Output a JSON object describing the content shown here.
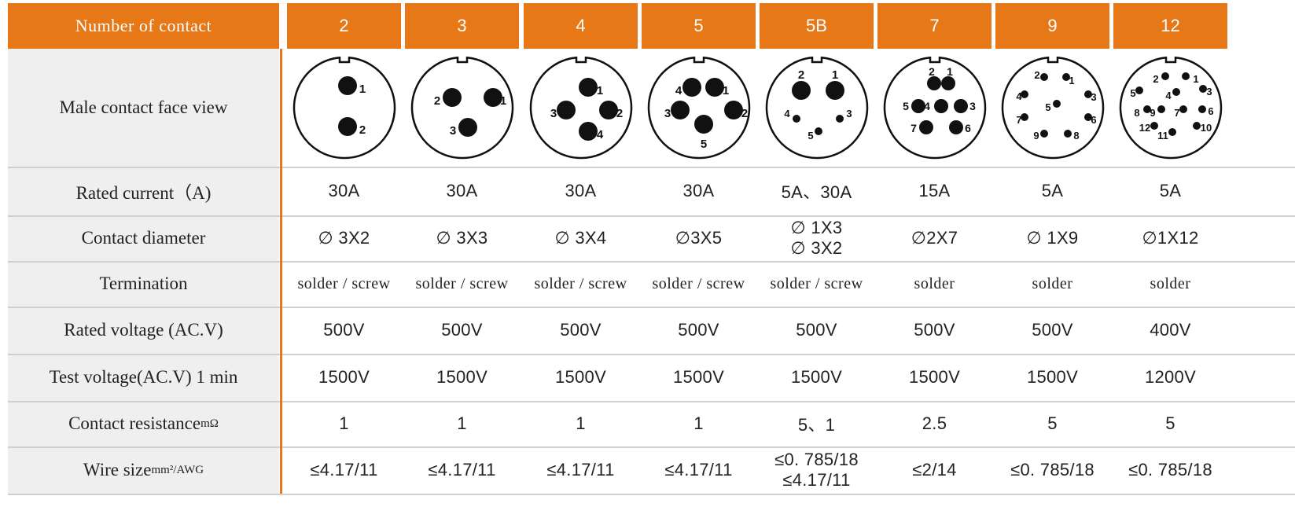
{
  "header": {
    "label": "Number of contact",
    "columns": [
      "2",
      "3",
      "4",
      "5",
      "5B",
      "7",
      "9",
      "12"
    ]
  },
  "rows": {
    "face_view": {
      "label": "Male contact face view"
    },
    "rated_current": {
      "label": "Rated current（A)",
      "values": [
        "30A",
        "30A",
        "30A",
        "30A",
        "5A、30A",
        "15A",
        "5A",
        "5A"
      ]
    },
    "contact_diameter": {
      "label": "Contact diameter",
      "values": [
        "∅ 3X2",
        "∅ 3X3",
        "∅ 3X4",
        "∅3X5",
        "∅ 1X3",
        "∅2X7",
        "∅ 1X9",
        "∅1X12"
      ],
      "values_line2": [
        "",
        "",
        "",
        "",
        "∅ 3X2",
        "",
        "",
        ""
      ]
    },
    "termination": {
      "label": "Termination",
      "values": [
        "solder / screw",
        "solder / screw",
        "solder / screw",
        "solder / screw",
        "solder / screw",
        "solder",
        "solder",
        "solder"
      ]
    },
    "rated_voltage": {
      "label": "Rated voltage (AC.V)",
      "values": [
        "500V",
        "500V",
        "500V",
        "500V",
        "500V",
        "500V",
        "500V",
        "400V"
      ]
    },
    "test_voltage": {
      "label": "Test voltage(AC.V) 1 min",
      "values": [
        "1500V",
        "1500V",
        "1500V",
        "1500V",
        "1500V",
        "1500V",
        "1500V",
        "1200V"
      ]
    },
    "contact_resistance": {
      "label": "Contact resistance",
      "unit": "mΩ",
      "values": [
        "1",
        "1",
        "1",
        "1",
        "5、1",
        "2.5",
        "5",
        "5"
      ]
    },
    "wire_size": {
      "label": "Wire size",
      "unit": "mm²/AWG",
      "values": [
        "≤4.17/11",
        "≤4.17/11",
        "≤4.17/11",
        "≤4.17/11",
        "≤0. 785/18",
        "≤2/14",
        "≤0. 785/18",
        "≤0. 785/18"
      ],
      "values_line2": [
        "",
        "",
        "",
        "",
        "≤4.17/11",
        "",
        "",
        ""
      ]
    }
  },
  "connectors": [
    {
      "pins": [
        {
          "n": "1",
          "size": "large"
        },
        {
          "n": "2",
          "size": "large"
        }
      ]
    },
    {
      "pins": [
        {
          "n": "1",
          "size": "large"
        },
        {
          "n": "2",
          "size": "large"
        },
        {
          "n": "3",
          "size": "large"
        }
      ]
    },
    {
      "pins": [
        {
          "n": "1",
          "size": "large"
        },
        {
          "n": "2",
          "size": "large"
        },
        {
          "n": "3",
          "size": "large"
        },
        {
          "n": "4",
          "size": "large"
        }
      ]
    },
    {
      "pins": [
        {
          "n": "1",
          "size": "large"
        },
        {
          "n": "2",
          "size": "large"
        },
        {
          "n": "3",
          "size": "large"
        },
        {
          "n": "4",
          "size": "large"
        },
        {
          "n": "5",
          "size": "large"
        }
      ]
    },
    {
      "pins": [
        {
          "n": "1",
          "size": "large"
        },
        {
          "n": "2",
          "size": "large"
        },
        {
          "n": "3",
          "size": "small"
        },
        {
          "n": "4",
          "size": "small"
        },
        {
          "n": "5",
          "size": "small"
        }
      ]
    },
    {
      "pins": [
        {
          "n": "1",
          "size": "medium"
        },
        {
          "n": "2",
          "size": "medium"
        },
        {
          "n": "3",
          "size": "medium"
        },
        {
          "n": "4",
          "size": "medium"
        },
        {
          "n": "5",
          "size": "medium"
        },
        {
          "n": "6",
          "size": "medium"
        },
        {
          "n": "7",
          "size": "medium"
        }
      ]
    },
    {
      "pins": [
        {
          "n": "1",
          "size": "small"
        },
        {
          "n": "2",
          "size": "small"
        },
        {
          "n": "3",
          "size": "small"
        },
        {
          "n": "4",
          "size": "small"
        },
        {
          "n": "5",
          "size": "small"
        },
        {
          "n": "6",
          "size": "small"
        },
        {
          "n": "7",
          "size": "small"
        },
        {
          "n": "8",
          "size": "small"
        },
        {
          "n": "9",
          "size": "small"
        }
      ]
    },
    {
      "pins": [
        {
          "n": "1",
          "size": "small"
        },
        {
          "n": "2",
          "size": "small"
        },
        {
          "n": "3",
          "size": "small"
        },
        {
          "n": "4",
          "size": "small"
        },
        {
          "n": "5",
          "size": "small"
        },
        {
          "n": "6",
          "size": "small"
        },
        {
          "n": "7",
          "size": "small"
        },
        {
          "n": "8",
          "size": "small"
        },
        {
          "n": "9",
          "size": "small"
        },
        {
          "n": "10",
          "size": "small"
        },
        {
          "n": "11",
          "size": "small"
        },
        {
          "n": "12",
          "size": "small"
        }
      ]
    }
  ],
  "colors": {
    "accent": "#E77817",
    "label_bg": "#EFEFEF",
    "rule": "#CFCFCF"
  }
}
